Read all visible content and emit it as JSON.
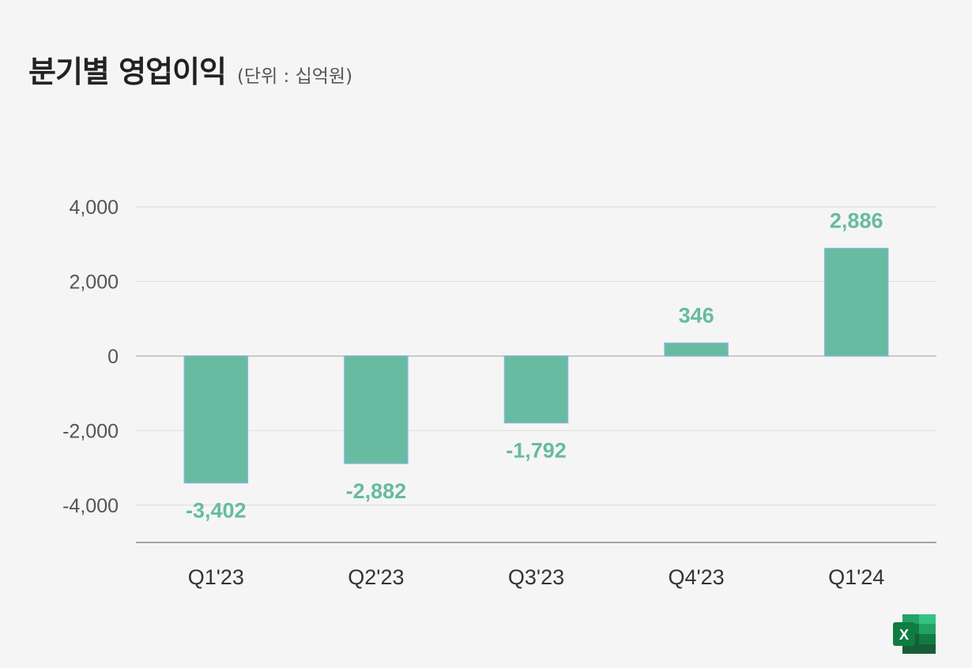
{
  "header": {
    "title": "분기별 영업이익",
    "unit": "(단위 : 십억원)"
  },
  "chart_data": {
    "type": "bar",
    "title": "분기별 영업이익",
    "subtitle": "(단위 : 십억원)",
    "categories": [
      "Q1'23",
      "Q2'23",
      "Q3'23",
      "Q4'23",
      "Q1'24"
    ],
    "values": [
      -3402,
      -2882,
      -1792,
      346,
      2886
    ],
    "data_labels": [
      "-3,402",
      "-2,882",
      "-1,792",
      "346",
      "2,886"
    ],
    "yticks": [
      4000,
      2000,
      0,
      -2000,
      -4000
    ],
    "ytick_labels": [
      "4,000",
      "2,000",
      "0",
      "-2,000",
      "-4,000"
    ],
    "ylim": [
      -5000,
      4000
    ],
    "grid": true,
    "xlabel": "",
    "ylabel": "",
    "colors": {
      "bar_fill": "#66bba0",
      "bar_stroke": "#8ab4d8",
      "data_label": "#66bba0",
      "grid": "#dddddd",
      "zero_line": "#bbbbbb",
      "axis_line": "#888888"
    }
  },
  "icons": {
    "corner_icon": "excel-icon"
  }
}
